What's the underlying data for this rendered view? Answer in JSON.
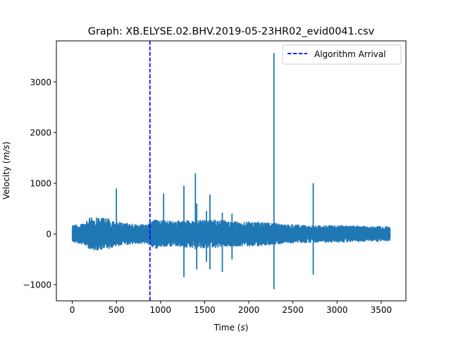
{
  "chart_data": {
    "type": "line",
    "title": "Graph: XB.ELYSE.02.BHV.2019-05-23HR02_evid0041.csv",
    "xlabel_main": "Time (",
    "xlabel_unit": "s",
    "xlabel_end": ")",
    "ylabel_main": "Velocity (",
    "ylabel_unit": "m/s",
    "ylabel_end": ")",
    "xlim": [
      -180,
      3780
    ],
    "ylim": [
      -1320,
      3810
    ],
    "xticks": [
      0,
      500,
      1000,
      1500,
      2000,
      2500,
      3000,
      3500
    ],
    "xtick_labels": [
      "0",
      "500",
      "1000",
      "1500",
      "2000",
      "2500",
      "3000",
      "3500"
    ],
    "yticks": [
      -1000,
      0,
      1000,
      2000,
      3000
    ],
    "ytick_labels": [
      "−1000",
      "0",
      "1000",
      "2000",
      "3000"
    ],
    "grid": false,
    "legend_placement": "top-right",
    "series": [
      {
        "name": "",
        "color": "#1f77b4",
        "x_range": [
          0,
          3600
        ],
        "baseline": 0,
        "noise_envelope": [
          [
            0,
            150
          ],
          [
            150,
            200
          ],
          [
            200,
            300
          ],
          [
            400,
            280
          ],
          [
            500,
            220
          ],
          [
            600,
            200
          ],
          [
            700,
            180
          ],
          [
            850,
            170
          ],
          [
            880,
            220
          ],
          [
            950,
            260
          ],
          [
            1100,
            230
          ],
          [
            1300,
            240
          ],
          [
            1500,
            260
          ],
          [
            1700,
            240
          ],
          [
            1900,
            220
          ],
          [
            2100,
            220
          ],
          [
            2250,
            200
          ],
          [
            2400,
            170
          ],
          [
            2600,
            160
          ],
          [
            2800,
            150
          ],
          [
            3000,
            150
          ],
          [
            3300,
            140
          ],
          [
            3600,
            130
          ]
        ],
        "spikes": [
          {
            "x": 500,
            "min": -150,
            "max": 900
          },
          {
            "x": 1035,
            "min": -200,
            "max": 800
          },
          {
            "x": 1265,
            "min": -850,
            "max": 950
          },
          {
            "x": 1395,
            "min": -300,
            "max": 1200
          },
          {
            "x": 1410,
            "min": -700,
            "max": 600
          },
          {
            "x": 1520,
            "min": -550,
            "max": 450
          },
          {
            "x": 1560,
            "min": -700,
            "max": 780
          },
          {
            "x": 1700,
            "min": -750,
            "max": 420
          },
          {
            "x": 1810,
            "min": -500,
            "max": 400
          },
          {
            "x": 2285,
            "min": -1090,
            "max": 3570
          },
          {
            "x": 2730,
            "min": -800,
            "max": 1000
          }
        ]
      },
      {
        "name": "Algorithm Arrival",
        "color": "#0000ff",
        "style": "dashed",
        "type": "vline",
        "x": 880
      }
    ]
  }
}
